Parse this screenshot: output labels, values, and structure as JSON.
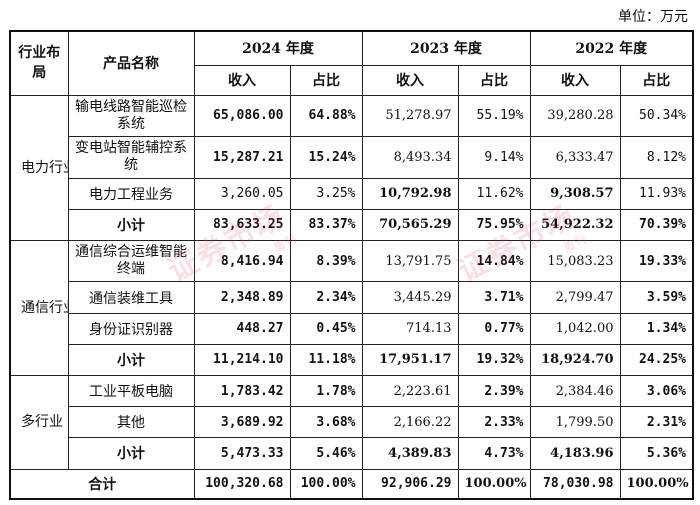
{
  "unit_label": "单位：万元",
  "headers": {
    "segment": "行业布局",
    "product": "产品名称",
    "years": [
      "2024 年度",
      "2023 年度",
      "2022 年度"
    ],
    "revenue": "收入",
    "share": "占比"
  },
  "segments": [
    {
      "name": "电力行业",
      "rows": [
        {
          "product": "输电线路智能巡检系统",
          "v2024": "65,086.00",
          "p2024": "64.88%",
          "v2023": "51,278.97",
          "p2023": "55.19%",
          "v2022": "39,280.28",
          "p2022": "50.34%"
        },
        {
          "product": "变电站智能辅控系统",
          "v2024": "15,287.21",
          "p2024": "15.24%",
          "v2023": "8,493.34",
          "p2023": "9.14%",
          "v2022": "6,333.47",
          "p2022": "8.12%"
        },
        {
          "product": "电力工程业务",
          "v2024": "3,260.05",
          "p2024": "3.25%",
          "v2023": "10,792.98",
          "p2023": "11.62%",
          "v2022": "9,308.57",
          "p2022": "11.93%"
        },
        {
          "product": "小计",
          "v2024": "83,633.25",
          "p2024": "83.37%",
          "v2023": "70,565.29",
          "p2023": "75.95%",
          "v2022": "54,922.32",
          "p2022": "70.39%"
        }
      ]
    },
    {
      "name": "通信行业",
      "rows": [
        {
          "product": "通信综合运维智能终端",
          "v2024": "8,416.94",
          "p2024": "8.39%",
          "v2023": "13,791.75",
          "p2023": "14.84%",
          "v2022": "15,083.23",
          "p2022": "19.33%"
        },
        {
          "product": "通信装维工具",
          "v2024": "2,348.89",
          "p2024": "2.34%",
          "v2023": "3,445.29",
          "p2023": "3.71%",
          "v2022": "2,799.47",
          "p2022": "3.59%"
        },
        {
          "product": "身份证识别器",
          "v2024": "448.27",
          "p2024": "0.45%",
          "v2023": "714.13",
          "p2023": "0.77%",
          "v2022": "1,042.00",
          "p2022": "1.34%"
        },
        {
          "product": "小计",
          "v2024": "11,214.10",
          "p2024": "11.18%",
          "v2023": "17,951.17",
          "p2023": "19.32%",
          "v2022": "18,924.70",
          "p2022": "24.25%"
        }
      ]
    },
    {
      "name": "多行业",
      "rows": [
        {
          "product": "工业平板电脑",
          "v2024": "1,783.42",
          "p2024": "1.78%",
          "v2023": "2,223.61",
          "p2023": "2.39%",
          "v2022": "2,384.46",
          "p2022": "3.06%"
        },
        {
          "product": "其他",
          "v2024": "3,689.92",
          "p2024": "3.68%",
          "v2023": "2,166.22",
          "p2023": "2.33%",
          "v2022": "1,799.50",
          "p2022": "2.31%"
        },
        {
          "product": "小计",
          "v2024": "5,473.33",
          "p2024": "5.46%",
          "v2023": "4,389.83",
          "p2023": "4.73%",
          "v2022": "4,183.96",
          "p2022": "5.36%"
        }
      ]
    }
  ],
  "total": {
    "label": "合计",
    "v2024": "100,320.68",
    "p2024": "100.00%",
    "v2023": "92,906.29",
    "p2023": "100.00%",
    "v2022": "78,030.98",
    "p2022": "100.00%"
  },
  "watermark": {
    "text": "证券市场",
    "sub": "周刊"
  }
}
